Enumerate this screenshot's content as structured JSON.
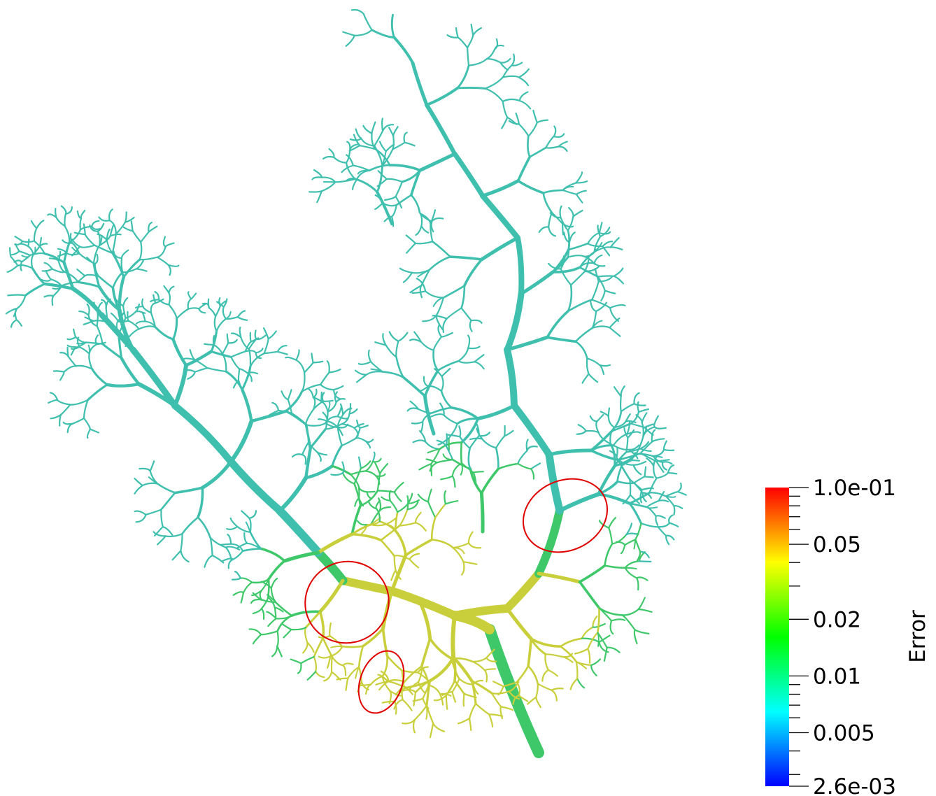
{
  "colorbar": {
    "title": "Error",
    "scale": "log",
    "min": 0.0026,
    "max": 0.1,
    "colormap": [
      "#0000ff",
      "#00ffff",
      "#00ff00",
      "#ffff00",
      "#ff0000"
    ],
    "labels": [
      {
        "text": "1.0e-01",
        "value": 0.1
      },
      {
        "text": "0.05",
        "value": 0.05
      },
      {
        "text": "0.02",
        "value": 0.02
      },
      {
        "text": "0.01",
        "value": 0.01
      },
      {
        "text": "0.005",
        "value": 0.005
      },
      {
        "text": "2.6e-03",
        "value": 0.0026
      }
    ],
    "minor_ticks": [
      0.09,
      0.08,
      0.07,
      0.06,
      0.04,
      0.03,
      0.009,
      0.008,
      0.007,
      0.006,
      0.004,
      0.003
    ]
  },
  "highlight_color": "#e00000",
  "tree_colors": {
    "low": "#3fbfae",
    "mid": "#3fc86a",
    "high": "#c9cf3a",
    "peak": "#d7a83a"
  }
}
